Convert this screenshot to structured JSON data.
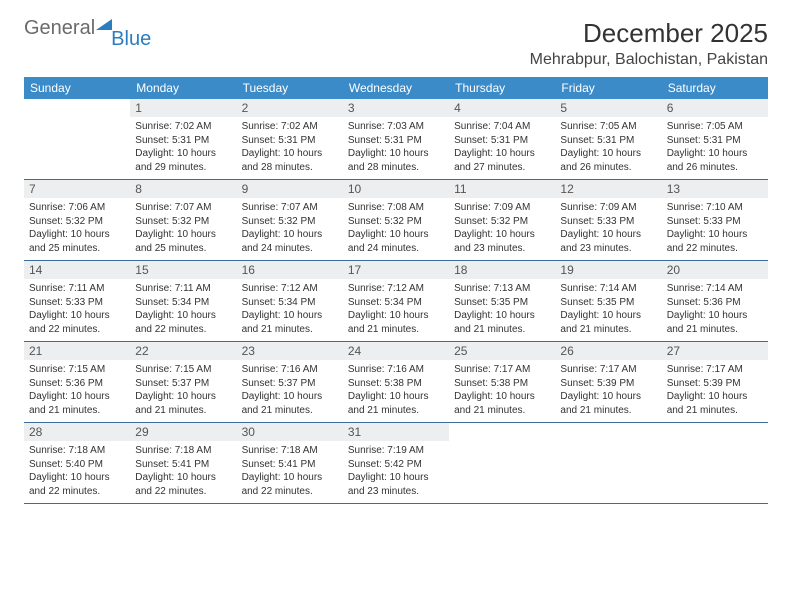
{
  "logo": {
    "text1": "General",
    "text2": "Blue"
  },
  "title": "December 2025",
  "location": "Mehrabpur, Balochistan, Pakistan",
  "colors": {
    "header_bg": "#3b8bc8",
    "header_text": "#ffffff",
    "daynum_bg": "#eceef0",
    "week_border": "#3b6e9d",
    "logo_gray": "#6b6b6b",
    "logo_blue": "#2b7dc0"
  },
  "typography": {
    "title_fontsize": 26,
    "location_fontsize": 16,
    "weekday_fontsize": 12,
    "daynum_fontsize": 12,
    "body_fontsize": 10
  },
  "weekdays": [
    "Sunday",
    "Monday",
    "Tuesday",
    "Wednesday",
    "Thursday",
    "Friday",
    "Saturday"
  ],
  "weeks": [
    [
      {
        "num": "",
        "sunrise": "",
        "sunset": "",
        "daylight": ""
      },
      {
        "num": "1",
        "sunrise": "Sunrise: 7:02 AM",
        "sunset": "Sunset: 5:31 PM",
        "daylight": "Daylight: 10 hours and 29 minutes."
      },
      {
        "num": "2",
        "sunrise": "Sunrise: 7:02 AM",
        "sunset": "Sunset: 5:31 PM",
        "daylight": "Daylight: 10 hours and 28 minutes."
      },
      {
        "num": "3",
        "sunrise": "Sunrise: 7:03 AM",
        "sunset": "Sunset: 5:31 PM",
        "daylight": "Daylight: 10 hours and 28 minutes."
      },
      {
        "num": "4",
        "sunrise": "Sunrise: 7:04 AM",
        "sunset": "Sunset: 5:31 PM",
        "daylight": "Daylight: 10 hours and 27 minutes."
      },
      {
        "num": "5",
        "sunrise": "Sunrise: 7:05 AM",
        "sunset": "Sunset: 5:31 PM",
        "daylight": "Daylight: 10 hours and 26 minutes."
      },
      {
        "num": "6",
        "sunrise": "Sunrise: 7:05 AM",
        "sunset": "Sunset: 5:31 PM",
        "daylight": "Daylight: 10 hours and 26 minutes."
      }
    ],
    [
      {
        "num": "7",
        "sunrise": "Sunrise: 7:06 AM",
        "sunset": "Sunset: 5:32 PM",
        "daylight": "Daylight: 10 hours and 25 minutes."
      },
      {
        "num": "8",
        "sunrise": "Sunrise: 7:07 AM",
        "sunset": "Sunset: 5:32 PM",
        "daylight": "Daylight: 10 hours and 25 minutes."
      },
      {
        "num": "9",
        "sunrise": "Sunrise: 7:07 AM",
        "sunset": "Sunset: 5:32 PM",
        "daylight": "Daylight: 10 hours and 24 minutes."
      },
      {
        "num": "10",
        "sunrise": "Sunrise: 7:08 AM",
        "sunset": "Sunset: 5:32 PM",
        "daylight": "Daylight: 10 hours and 24 minutes."
      },
      {
        "num": "11",
        "sunrise": "Sunrise: 7:09 AM",
        "sunset": "Sunset: 5:32 PM",
        "daylight": "Daylight: 10 hours and 23 minutes."
      },
      {
        "num": "12",
        "sunrise": "Sunrise: 7:09 AM",
        "sunset": "Sunset: 5:33 PM",
        "daylight": "Daylight: 10 hours and 23 minutes."
      },
      {
        "num": "13",
        "sunrise": "Sunrise: 7:10 AM",
        "sunset": "Sunset: 5:33 PM",
        "daylight": "Daylight: 10 hours and 22 minutes."
      }
    ],
    [
      {
        "num": "14",
        "sunrise": "Sunrise: 7:11 AM",
        "sunset": "Sunset: 5:33 PM",
        "daylight": "Daylight: 10 hours and 22 minutes."
      },
      {
        "num": "15",
        "sunrise": "Sunrise: 7:11 AM",
        "sunset": "Sunset: 5:34 PM",
        "daylight": "Daylight: 10 hours and 22 minutes."
      },
      {
        "num": "16",
        "sunrise": "Sunrise: 7:12 AM",
        "sunset": "Sunset: 5:34 PM",
        "daylight": "Daylight: 10 hours and 21 minutes."
      },
      {
        "num": "17",
        "sunrise": "Sunrise: 7:12 AM",
        "sunset": "Sunset: 5:34 PM",
        "daylight": "Daylight: 10 hours and 21 minutes."
      },
      {
        "num": "18",
        "sunrise": "Sunrise: 7:13 AM",
        "sunset": "Sunset: 5:35 PM",
        "daylight": "Daylight: 10 hours and 21 minutes."
      },
      {
        "num": "19",
        "sunrise": "Sunrise: 7:14 AM",
        "sunset": "Sunset: 5:35 PM",
        "daylight": "Daylight: 10 hours and 21 minutes."
      },
      {
        "num": "20",
        "sunrise": "Sunrise: 7:14 AM",
        "sunset": "Sunset: 5:36 PM",
        "daylight": "Daylight: 10 hours and 21 minutes."
      }
    ],
    [
      {
        "num": "21",
        "sunrise": "Sunrise: 7:15 AM",
        "sunset": "Sunset: 5:36 PM",
        "daylight": "Daylight: 10 hours and 21 minutes."
      },
      {
        "num": "22",
        "sunrise": "Sunrise: 7:15 AM",
        "sunset": "Sunset: 5:37 PM",
        "daylight": "Daylight: 10 hours and 21 minutes."
      },
      {
        "num": "23",
        "sunrise": "Sunrise: 7:16 AM",
        "sunset": "Sunset: 5:37 PM",
        "daylight": "Daylight: 10 hours and 21 minutes."
      },
      {
        "num": "24",
        "sunrise": "Sunrise: 7:16 AM",
        "sunset": "Sunset: 5:38 PM",
        "daylight": "Daylight: 10 hours and 21 minutes."
      },
      {
        "num": "25",
        "sunrise": "Sunrise: 7:17 AM",
        "sunset": "Sunset: 5:38 PM",
        "daylight": "Daylight: 10 hours and 21 minutes."
      },
      {
        "num": "26",
        "sunrise": "Sunrise: 7:17 AM",
        "sunset": "Sunset: 5:39 PM",
        "daylight": "Daylight: 10 hours and 21 minutes."
      },
      {
        "num": "27",
        "sunrise": "Sunrise: 7:17 AM",
        "sunset": "Sunset: 5:39 PM",
        "daylight": "Daylight: 10 hours and 21 minutes."
      }
    ],
    [
      {
        "num": "28",
        "sunrise": "Sunrise: 7:18 AM",
        "sunset": "Sunset: 5:40 PM",
        "daylight": "Daylight: 10 hours and 22 minutes."
      },
      {
        "num": "29",
        "sunrise": "Sunrise: 7:18 AM",
        "sunset": "Sunset: 5:41 PM",
        "daylight": "Daylight: 10 hours and 22 minutes."
      },
      {
        "num": "30",
        "sunrise": "Sunrise: 7:18 AM",
        "sunset": "Sunset: 5:41 PM",
        "daylight": "Daylight: 10 hours and 22 minutes."
      },
      {
        "num": "31",
        "sunrise": "Sunrise: 7:19 AM",
        "sunset": "Sunset: 5:42 PM",
        "daylight": "Daylight: 10 hours and 23 minutes."
      },
      {
        "num": "",
        "sunrise": "",
        "sunset": "",
        "daylight": ""
      },
      {
        "num": "",
        "sunrise": "",
        "sunset": "",
        "daylight": ""
      },
      {
        "num": "",
        "sunrise": "",
        "sunset": "",
        "daylight": ""
      }
    ]
  ]
}
